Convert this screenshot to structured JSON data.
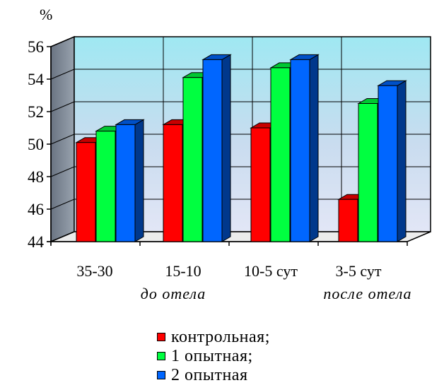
{
  "chart_data": {
    "type": "bar",
    "ylabel": "%",
    "ylim": [
      44,
      56
    ],
    "yticks": [
      44,
      46,
      48,
      50,
      52,
      54,
      56
    ],
    "grid": true,
    "categories": [
      "35-30",
      "15-10",
      "10-5 сут",
      "3-5 сут"
    ],
    "groups": [
      {
        "label": "до отела",
        "categories": [
          0,
          1
        ]
      },
      {
        "label": "после отела",
        "categories": [
          3
        ]
      }
    ],
    "legend_position": "bottom",
    "series": [
      {
        "name": "контрольная;",
        "color": "#ff0000",
        "values": [
          50.1,
          51.2,
          51.0,
          46.6
        ]
      },
      {
        "name": "1 опытная;",
        "color": "#00ff40",
        "values": [
          50.8,
          54.1,
          54.7,
          52.5
        ]
      },
      {
        "name": "2 опытная",
        "color": "#0066ff",
        "values": [
          51.2,
          55.2,
          55.2,
          53.6
        ]
      }
    ]
  }
}
